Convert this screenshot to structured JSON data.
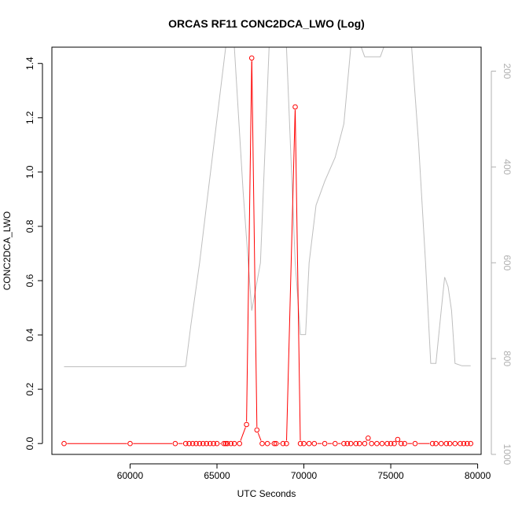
{
  "chart_data": {
    "type": "line",
    "title": "ORCAS RF11 CONC2DCA_LWO (Log)",
    "xlabel": "UTC Seconds",
    "ylabel": "CONC2DCA_LWO",
    "xlim": [
      55500,
      80200
    ],
    "ylim": [
      -0.04,
      1.46
    ],
    "x_ticks": [
      60000,
      65000,
      70000,
      75000,
      80000
    ],
    "x_tick_labels": [
      "60000",
      "65000",
      "70000",
      "75000",
      "80000"
    ],
    "y_ticks": [
      0.0,
      0.2,
      0.4,
      0.6,
      0.8,
      1.0,
      1.2,
      1.4
    ],
    "y_tick_labels": [
      "0.0",
      "0.2",
      "0.4",
      "0.6",
      "0.8",
      "1.0",
      "1.2",
      "1.4"
    ],
    "y2lim": [
      1000,
      150
    ],
    "y2_ticks": [
      200,
      400,
      600,
      800,
      1000
    ],
    "y2_tick_labels": [
      "200",
      "400",
      "600",
      "800",
      "1000"
    ],
    "grid": false,
    "colors": {
      "data": "#ff0000",
      "secondary": "#bebebe",
      "axis": "#000000",
      "secondary_axis": "#b0b0b0"
    },
    "series": [
      {
        "style": "points-and-line",
        "x": [
          56200,
          60000,
          62600,
          63200,
          63400,
          63600,
          63800,
          64000,
          64200,
          64400,
          64600,
          64800,
          65000,
          65400,
          65500,
          65600,
          65800,
          66000,
          66300,
          66700,
          67000,
          67300,
          67600,
          67900,
          68300,
          68400,
          68800,
          69000,
          69500,
          69800,
          70000,
          70300,
          70600,
          71200,
          71800,
          72300,
          72500,
          72700,
          73000,
          73200,
          73500,
          73700,
          73900,
          74200,
          74500,
          74800,
          75000,
          75200,
          75400,
          75600,
          75800,
          76400,
          77400,
          77600,
          77900,
          78200,
          78400,
          78700,
          79000,
          79200,
          79400,
          79600
        ],
        "y": [
          0,
          0,
          0,
          0,
          0,
          0,
          0,
          0,
          0,
          0,
          0,
          0,
          0,
          0,
          0,
          0,
          0,
          0,
          0,
          0.07,
          1.42,
          0.05,
          0,
          0,
          0,
          0,
          0,
          0,
          1.24,
          0,
          0,
          0,
          0,
          0,
          0,
          0,
          0,
          0,
          0,
          0,
          0,
          0.02,
          0,
          0,
          0,
          0,
          0,
          0,
          0.015,
          0,
          0,
          0,
          0,
          0,
          0,
          0,
          0,
          0,
          0,
          0,
          0,
          0
        ]
      },
      {
        "style": "line",
        "axis": "right",
        "x": [
          56200,
          63000,
          63200,
          63500,
          64000,
          64500,
          65000,
          65500,
          66000,
          66500,
          67000,
          67500,
          68000,
          68500,
          69000,
          69500,
          69800,
          70100,
          70300,
          70700,
          71200,
          71800,
          72300,
          72700,
          73000,
          73300,
          73500,
          74200,
          74400,
          74600,
          75000,
          75400,
          75800,
          76200,
          76600,
          77000,
          77300,
          77600,
          77900,
          78100,
          78300,
          78500,
          78700,
          79100,
          79600
        ],
        "y": [
          817,
          817,
          816,
          730,
          600,
          450,
          300,
          150,
          150,
          450,
          700,
          600,
          150,
          150,
          150,
          600,
          750,
          750,
          600,
          480,
          430,
          380,
          310,
          150,
          150,
          150,
          170,
          170,
          170,
          150,
          150,
          150,
          150,
          150,
          350,
          600,
          810,
          810,
          700,
          630,
          650,
          700,
          810,
          815,
          815
        ]
      }
    ]
  }
}
